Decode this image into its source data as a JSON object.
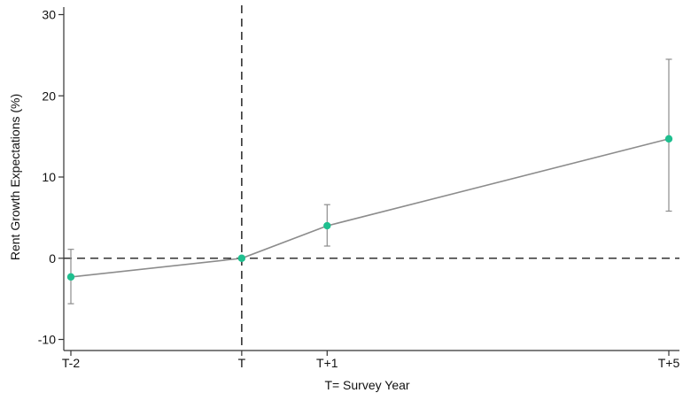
{
  "chart_data": {
    "type": "line",
    "title": "",
    "xlabel": "T= Survey Year",
    "ylabel": "Rent Growth Expectations (%)",
    "x_categories": [
      "T-2",
      "T",
      "T+1",
      "T+5"
    ],
    "x_values": [
      -2,
      0,
      1,
      5
    ],
    "ylim": [
      -10,
      30
    ],
    "yticks": [
      -10,
      0,
      10,
      20,
      30
    ],
    "ytick_labels": [
      "-10",
      "0",
      "10",
      "20",
      "30"
    ],
    "series": [
      {
        "values": [
          -2.3,
          0.0,
          4.0,
          14.7
        ],
        "ci_low": [
          -5.6,
          0.0,
          1.5,
          5.8
        ],
        "ci_high": [
          1.1,
          0.0,
          6.6,
          24.5
        ]
      }
    ],
    "reference_lines": {
      "horizontal_y": 0,
      "vertical_x": 0
    },
    "grid": false,
    "legend": "none",
    "colors": {
      "marker": "#1fbf8f",
      "line": "#8c8c8c",
      "error_bar": "#8c8c8c",
      "axis": "#333333",
      "reference": "#333333"
    }
  }
}
